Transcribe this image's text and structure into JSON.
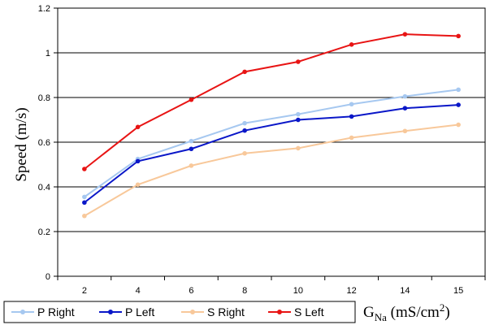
{
  "chart_data": {
    "type": "line",
    "categories": [
      "2",
      "4",
      "6",
      "8",
      "10",
      "12",
      "14",
      "15"
    ],
    "ylabel": "Speed (m/s)",
    "xlabel": {
      "main": "G",
      "sub": "Na",
      "unit": " (mS/cm",
      "sup": "2",
      "close": ")"
    },
    "ylim": [
      0,
      1.2
    ],
    "yticks": [
      "0",
      "0.2",
      "0.4",
      "0.6",
      "0.8",
      "1",
      "1.2"
    ],
    "grid": true,
    "legend_position": "bottom",
    "series": [
      {
        "name": "P Right",
        "color": "#a6c8f0",
        "values": [
          0.355,
          0.525,
          0.605,
          0.685,
          0.725,
          0.77,
          0.805,
          0.835
        ]
      },
      {
        "name": "P Left",
        "color": "#0a17c8",
        "values": [
          0.33,
          0.515,
          0.57,
          0.652,
          0.7,
          0.715,
          0.752,
          0.767
        ]
      },
      {
        "name": "S Right",
        "color": "#f8c89a",
        "values": [
          0.27,
          0.41,
          0.495,
          0.55,
          0.573,
          0.62,
          0.65,
          0.678
        ]
      },
      {
        "name": "S Left",
        "color": "#e81414",
        "values": [
          0.48,
          0.668,
          0.79,
          0.915,
          0.96,
          1.037,
          1.083,
          1.075
        ]
      }
    ]
  }
}
